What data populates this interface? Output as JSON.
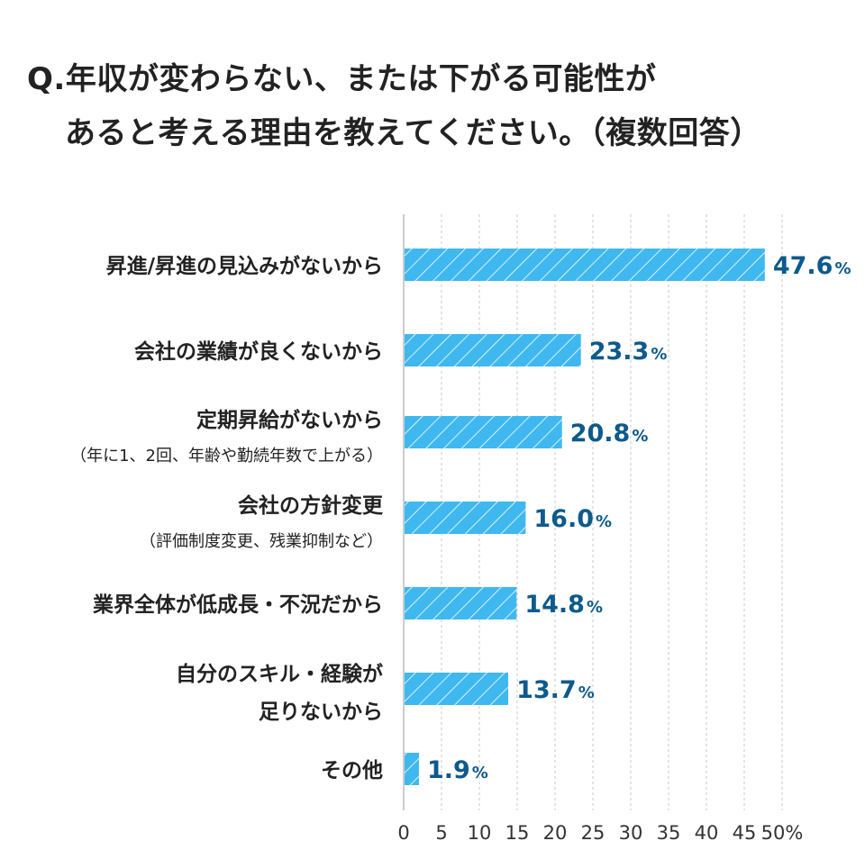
{
  "title": {
    "line1": "Q.年収が変わらない、または下がる可能性が",
    "line2": "あると考える理由を教えてください。（複数回答）"
  },
  "colors": {
    "bar": "#3fb8f0",
    "bar_hatch": "#ffffff",
    "value_text": "#0d5a8c",
    "grid": "#c8c8c8",
    "axis": "#bbbbbb"
  },
  "chart_data": {
    "type": "bar",
    "orientation": "horizontal",
    "categories": [
      {
        "lines": [
          "昇進/昇進の見込みがないから"
        ],
        "sub": ""
      },
      {
        "lines": [
          "会社の業績が良くないから"
        ],
        "sub": ""
      },
      {
        "lines": [
          "定期昇給がないから"
        ],
        "sub": "（年に1、2回、年齢や勤続年数で上がる）"
      },
      {
        "lines": [
          "会社の方針変更"
        ],
        "sub": "（評価制度変更、残業抑制など）"
      },
      {
        "lines": [
          "業界全体が低成長・不況だから"
        ],
        "sub": ""
      },
      {
        "lines": [
          "自分のスキル・経験が",
          "足りないから"
        ],
        "sub": ""
      },
      {
        "lines": [
          "その他"
        ],
        "sub": ""
      }
    ],
    "values": [
      47.6,
      23.3,
      20.8,
      16.0,
      14.8,
      13.7,
      1.9
    ],
    "value_labels": [
      "47.6",
      "23.3",
      "20.8",
      "16.0",
      "14.8",
      "13.7",
      "1.9"
    ],
    "value_unit": "%",
    "xlim": [
      0,
      50
    ],
    "xticks": [
      "0",
      "5",
      "10",
      "15",
      "20",
      "25",
      "30",
      "35",
      "40",
      "45",
      "50%"
    ],
    "grid": true
  }
}
